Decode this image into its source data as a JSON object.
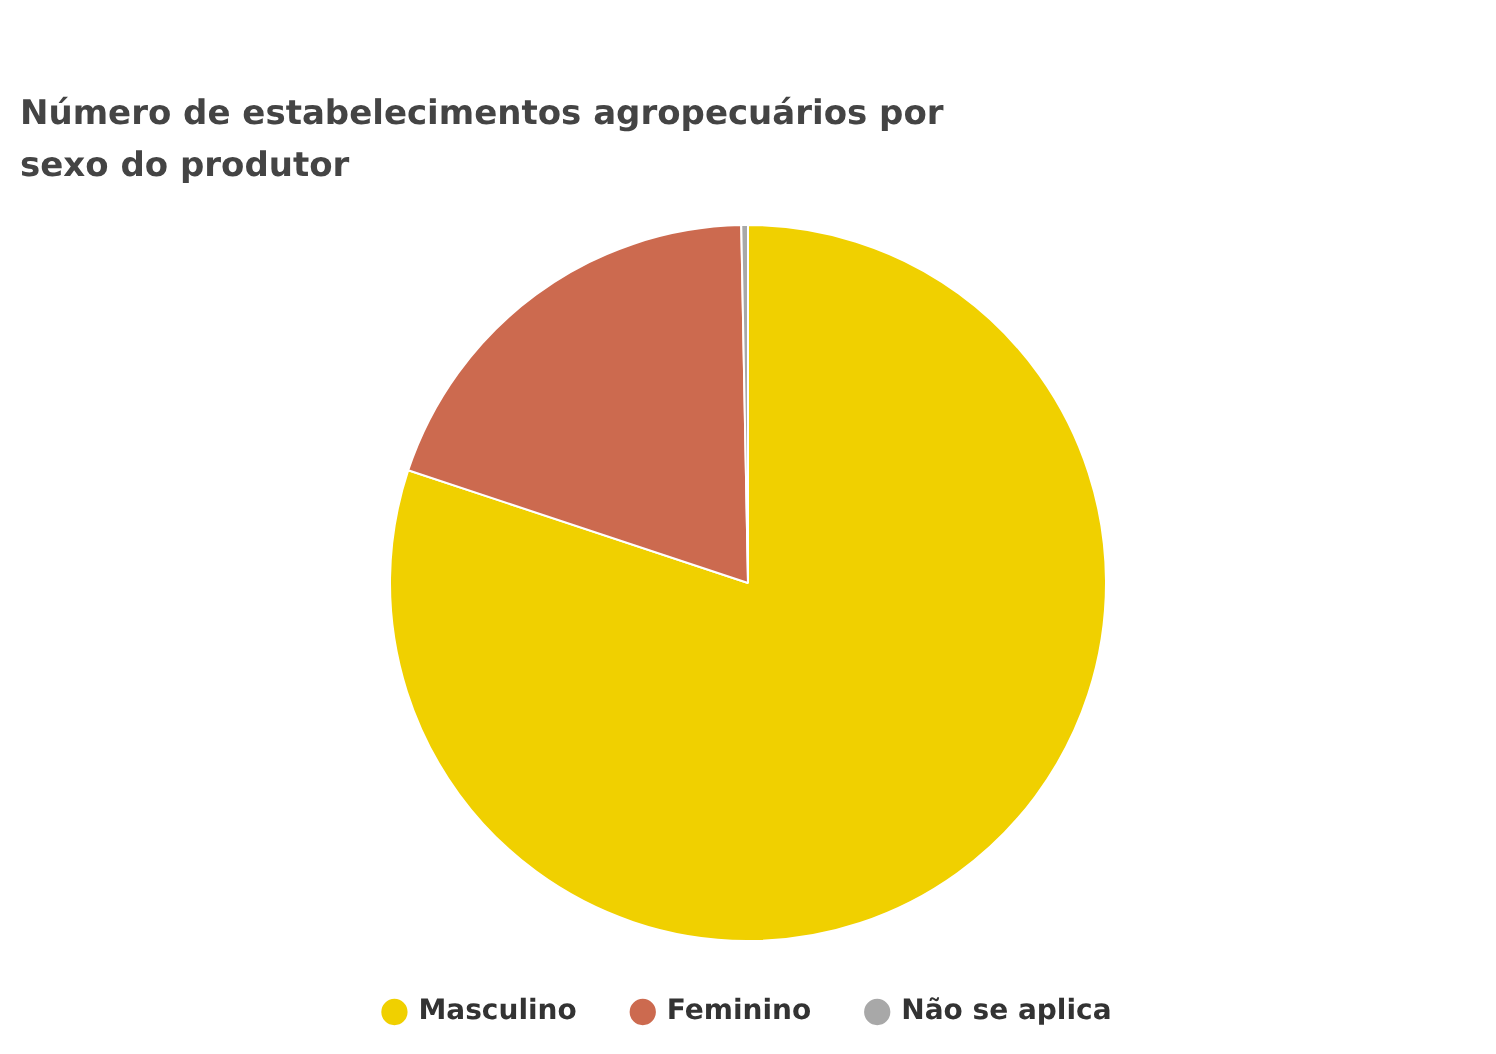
{
  "chart_data": {
    "type": "pie",
    "title": "Número de estabelecimentos agropecuários por sexo do produtor",
    "categories": [
      "Masculino",
      "Feminino",
      "Não se aplica"
    ],
    "values": [
      80.1,
      19.6,
      0.3
    ],
    "colors": [
      "#f0d000",
      "#cc6a4f",
      "#a8a8a8"
    ],
    "legend": "bottom"
  }
}
